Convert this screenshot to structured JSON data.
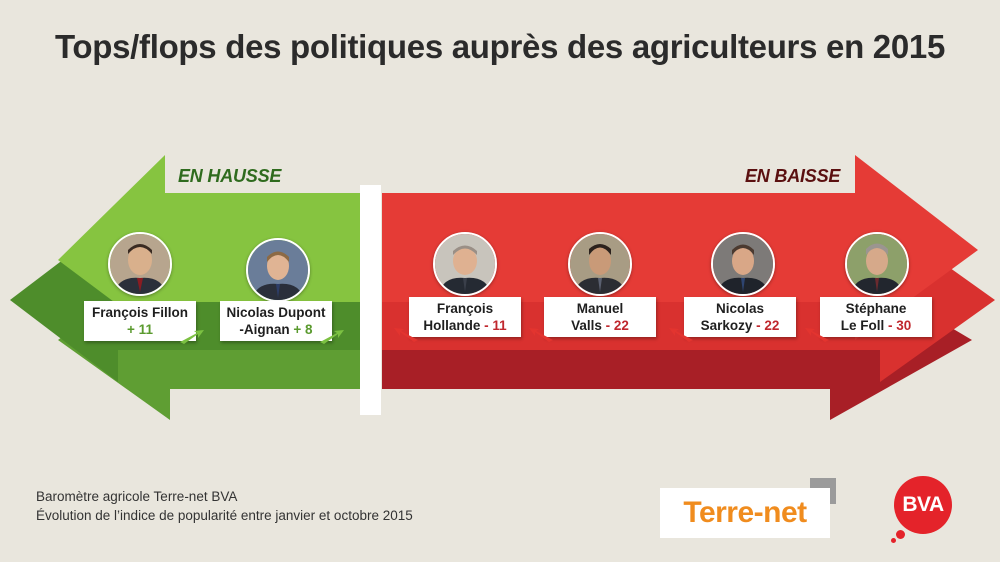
{
  "title": "Tops/flops des politiques auprès des agriculteurs en 2015",
  "sections": {
    "hausse": {
      "label": "EN HAUSSE",
      "color": "#7cc142"
    },
    "baisse": {
      "label": "EN BAISSE",
      "color": "#e3342f"
    }
  },
  "politicians": [
    {
      "line1": "François Fillon",
      "line2_name": "",
      "change": "+ 11",
      "trend": "up"
    },
    {
      "line1": "Nicolas Dupont",
      "line2_name": "-Aignan",
      "change": "+ 8",
      "trend": "up"
    },
    {
      "line1": "François",
      "line2_name": "Hollande",
      "change": "- 11",
      "trend": "down"
    },
    {
      "line1": "Manuel",
      "line2_name": "Valls",
      "change": "- 22",
      "trend": "down"
    },
    {
      "line1": "Nicolas",
      "line2_name": "Sarkozy",
      "change": "- 22",
      "trend": "down"
    },
    {
      "line1": "Stéphane",
      "line2_name": "Le Foll",
      "change": "- 30",
      "trend": "down"
    }
  ],
  "footer": {
    "line1": "Baromètre agricole Terre-net BVA",
    "line2": "Évolution de l’indice de popularité entre janvier et octobre 2015"
  },
  "logos": {
    "terre_net": "Terre-net",
    "bva": "BVA"
  }
}
